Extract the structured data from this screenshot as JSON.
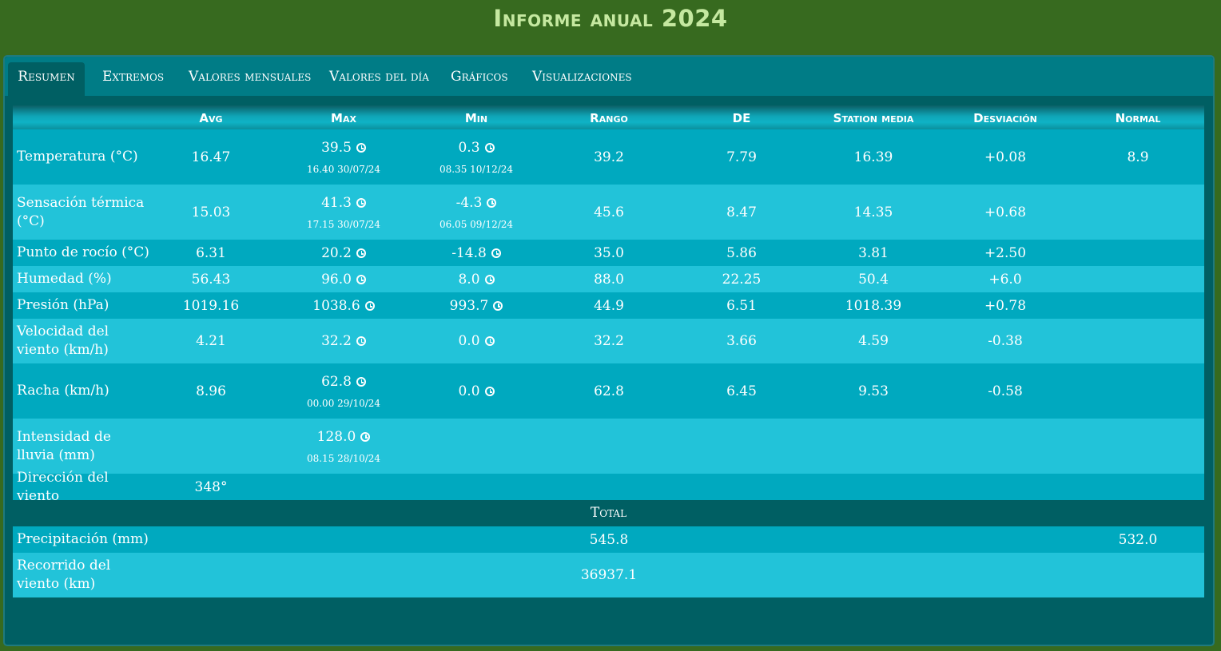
{
  "title": "Informe anual 2024",
  "tabs": [
    {
      "label": "Resumen"
    },
    {
      "label": "Extremos"
    },
    {
      "label": "Valores mensuales"
    },
    {
      "label": "Valores del día"
    },
    {
      "label": "Gráficos"
    },
    {
      "label": "Visualizaciones"
    }
  ],
  "table": {
    "headers": [
      "Avg",
      "Max",
      "Min",
      "Rango",
      "DE",
      "Station media",
      "Desviación",
      "Normal"
    ],
    "rows": [
      {
        "label": "Temperatura (°C)",
        "avg": "16.47",
        "max": "39.5",
        "max_time": "16.40 30/07/24",
        "min": "0.3",
        "min_time": "08.35 10/12/24",
        "range": "39.2",
        "sd": "7.79",
        "station_mean": "16.39",
        "deviation": "+0.08",
        "normal": "8.9"
      },
      {
        "label": "Sensación térmica (°C)",
        "avg": "15.03",
        "max": "41.3",
        "max_time": "17.15 30/07/24",
        "min": "-4.3",
        "min_time": "06.05 09/12/24",
        "range": "45.6",
        "sd": "8.47",
        "station_mean": "14.35",
        "deviation": "+0.68",
        "normal": ""
      },
      {
        "label": "Punto de rocío (°C)",
        "avg": "6.31",
        "max": "20.2",
        "min": "-14.8",
        "range": "35.0",
        "sd": "5.86",
        "station_mean": "3.81",
        "deviation": "+2.50",
        "normal": ""
      },
      {
        "label": "Humedad (%)",
        "avg": "56.43",
        "max": "96.0",
        "min": "8.0",
        "range": "88.0",
        "sd": "22.25",
        "station_mean": "50.4",
        "deviation": "+6.0",
        "normal": ""
      },
      {
        "label": "Presión (hPa)",
        "avg": "1019.16",
        "max": "1038.6",
        "min": "993.7",
        "range": "44.9",
        "sd": "6.51",
        "station_mean": "1018.39",
        "deviation": "+0.78",
        "normal": ""
      },
      {
        "label": "Velocidad del viento (km/h)",
        "avg": "4.21",
        "max": "32.2",
        "min": "0.0",
        "range": "32.2",
        "sd": "3.66",
        "station_mean": "4.59",
        "deviation": "-0.38",
        "normal": ""
      },
      {
        "label": "Racha (km/h)",
        "avg": "8.96",
        "max": "62.8",
        "max_time": "00.00 29/10/24",
        "min": "0.0",
        "range": "62.8",
        "sd": "6.45",
        "station_mean": "9.53",
        "deviation": "-0.58",
        "normal": ""
      },
      {
        "label": "Intensidad de lluvia (mm)",
        "avg": "",
        "max": "128.0",
        "max_time": "08.15 28/10/24"
      },
      {
        "label": "Dirección del viento",
        "avg": "348°"
      }
    ],
    "total_label": "Total",
    "totals": [
      {
        "label": "Precipitación (mm)",
        "range": "545.8",
        "normal": "532.0"
      },
      {
        "label": "Recorrido del viento (km)",
        "range": "36937.1"
      }
    ]
  },
  "icons": {
    "timestamp_icon": "clock-icon"
  },
  "colors": {
    "background": "#376a1f",
    "panel": "#005f63",
    "row_dark": "#00a9bf",
    "row_light": "#22c3d9",
    "title": "#c5e8a0"
  }
}
